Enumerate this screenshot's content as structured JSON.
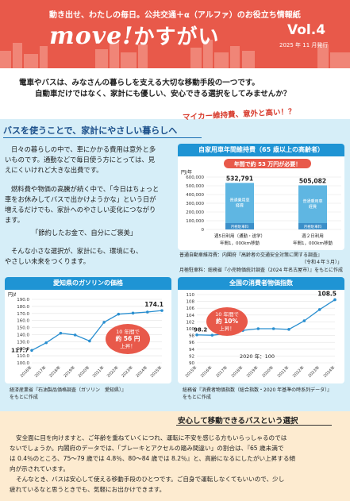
{
  "header": {
    "tagline": "動き出せ、わたしの毎日。公共交通＋α（アルファ）のお役立ち情報紙",
    "title_latin": "move!",
    "title_jp": "かすがい",
    "vol": "Vol.4",
    "issue_date": "2025 年 11 月発行"
  },
  "intro": {
    "line1": "電車やバスは、みなさんの暮らしを支える大切な移動手段の一つです。",
    "line2": "自動車だけではなく、家計にも優しい、安心できる選択をしてみませんか？",
    "callout": "マイカー維持費、意外と高い！？"
  },
  "section1": {
    "title": "バスを使うことで、家計にやさしい暮らしへ",
    "paragraphs": [
      "日々の暮らしの中で、車にかかる費用は意外と多",
      "いものです。通勤などで毎日使う方にとっては、見",
      "えにくいけれど大きな出費です。",
      "燃料費や物価の高騰が続く中で、「今日はちょっと",
      "車をお休みしてバスで出かけようかな」という日が",
      "増えるだけでも、家計へのやさしい変化につながり",
      "ます。",
      "「節約したお金で、自分にご褒美」",
      "そんな小さな選択が、家計にも、環境にも、",
      "やさしい未来をつくります。"
    ]
  },
  "chart_maintenance": {
    "title": "自家用車年間維持費（65 歳以上の高齢者）",
    "banner": "年間で約 53 万円が必要！",
    "unit": "円/年",
    "y_ticks": [
      "600,000",
      "500,000",
      "400,000",
      "300,000",
      "200,000",
      "100,000",
      "0"
    ],
    "bars": [
      {
        "value_label": "532,791",
        "label1": "週5日利用（通勤・送学）",
        "label2": "年間1，000km移動",
        "seg_main": "普通乗用車 経費",
        "seg_bottom": "月極駐車料"
      },
      {
        "value_label": "505,082",
        "label1": "週２日利用",
        "label2": "年間1，000km移動",
        "seg_main": "普通乗用車 経費",
        "seg_bottom": "月極駐車料"
      }
    ],
    "note1": "普通自動車維持費：内閣府『高齢者の交通安全対策に関する調査』",
    "note2": "（令和４年３月）」",
    "note3": "月極駐車料：総務省『小売物価統計調査（2024 年名古屋市）』をもとに作成"
  },
  "chart_gasoline": {
    "title": "愛知県のガソリンの価格",
    "unit": "円/ℓ",
    "y_ticks": [
      "190.0",
      "180.0",
      "170.0",
      "160.0",
      "150.0",
      "140.0",
      "130.0",
      "120.0",
      "110.0",
      "100.0"
    ],
    "x_labels": [
      "2016年",
      "2017年",
      "2018年",
      "2019年",
      "2020年",
      "2021年",
      "2022年",
      "2023年",
      "2024年",
      "2025年"
    ],
    "first_value": "117.7",
    "last_value": "174.1",
    "bubble1": "10 年間で",
    "bubble2": "約 56 円",
    "bubble3": "上昇！",
    "note1": "経済産業省『石油製品価格調査（ガソリン　愛知県）』",
    "note2": "をもとに作成"
  },
  "chart_cpi": {
    "title": "全国の消費者物価指数",
    "y_ticks": [
      "110",
      "108",
      "106",
      "104",
      "102",
      "100",
      "98",
      "96",
      "94",
      "92",
      "90"
    ],
    "x_labels": [
      "2015年",
      "2016年",
      "2017年",
      "2018年",
      "2019年",
      "2020年",
      "2021年",
      "2022年",
      "2023年",
      "2024年"
    ],
    "first_value": "98.2",
    "last_value": "108.5",
    "base_label": "2020 年：100",
    "bubble1": "10 年間で",
    "bubble2": "約 10%",
    "bubble3": "上昇！",
    "note1": "総務省『消費者物価指数（総合指数・2020 年基準の時系列データ）』",
    "note2": "をもとに作成"
  },
  "section2": {
    "title": "安心して移動できるバスという選択",
    "lines": [
      "安全面に目を向けますと、ご年齢を重ねていくにつれ、運転に不安を感じる方もいらっしゃるのでは",
      "ないでしょうか。内閣府のデータでは、「ブレーキとアクセルの踏み間違い」の割合は、『65 歳未満で",
      "は 0.4％のところ、75～79 歳では 4.8％、80～84 歳では 8.2％』と、高齢になるにしたがい上昇する傾",
      "向が示されています。",
      "そんなとき、バスは安心して使える移動手段のひとつです。ご自身で運転しなくてもいいので、少し",
      "疲れているなと思うときでも、気軽にお出かけできます。"
    ]
  },
  "chart_data": [
    {
      "type": "bar",
      "title": "自家用車年間維持費（65 歳以上の高齢者）",
      "categories": [
        "週5日利用（通勤・送学）",
        "週２日利用"
      ],
      "values": [
        532791,
        505082
      ],
      "ylabel": "円/年",
      "ylim": [
        0,
        600000
      ]
    },
    {
      "type": "line",
      "title": "愛知県のガソリンの価格",
      "x": [
        "2016年",
        "2017年",
        "2018年",
        "2019年",
        "2020年",
        "2021年",
        "2022年",
        "2023年",
        "2024年",
        "2025年"
      ],
      "values": [
        117.7,
        128.5,
        142.0,
        139.5,
        131.0,
        157.5,
        169.0,
        170.5,
        172.0,
        174.1
      ],
      "ylabel": "円/ℓ",
      "ylim": [
        100,
        190
      ]
    },
    {
      "type": "line",
      "title": "全国の消費者物価指数",
      "x": [
        "2015年",
        "2016年",
        "2017年",
        "2018年",
        "2019年",
        "2020年",
        "2021年",
        "2022年",
        "2023年",
        "2024年"
      ],
      "values": [
        98.2,
        98.1,
        98.6,
        99.5,
        100.0,
        100.0,
        99.8,
        102.3,
        105.6,
        108.5
      ],
      "ylim": [
        90,
        110
      ]
    }
  ]
}
